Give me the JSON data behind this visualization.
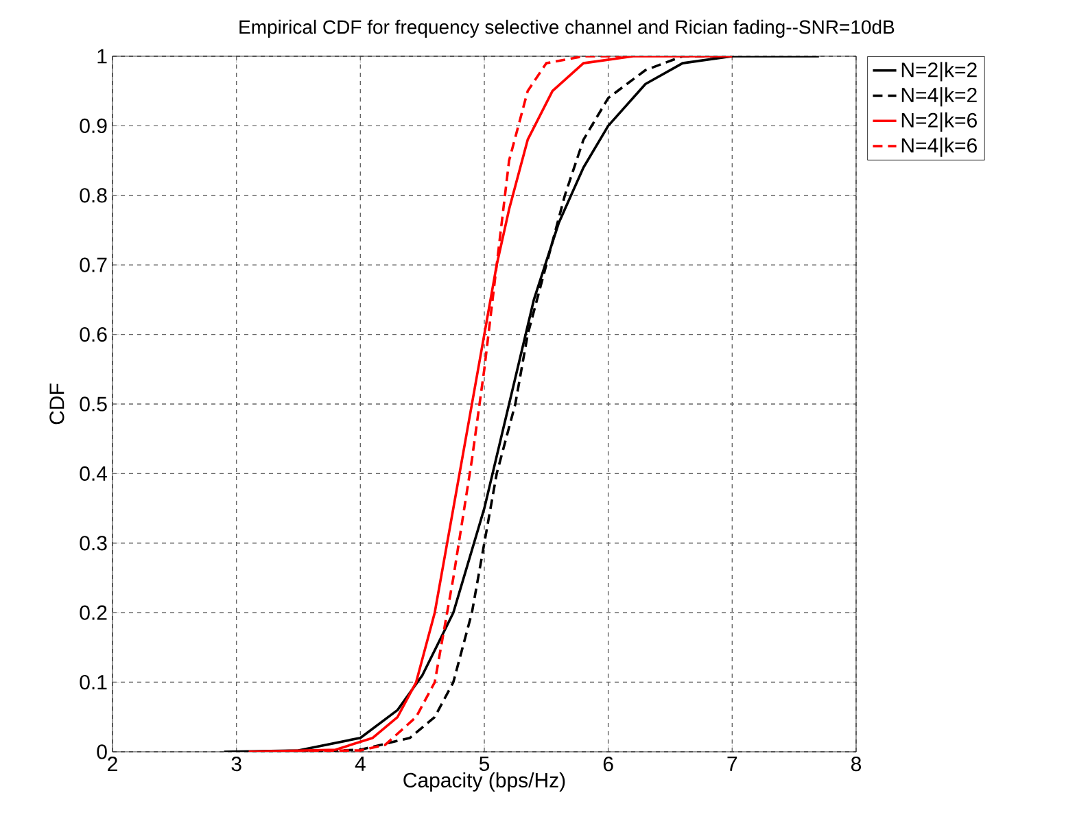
{
  "chart_data": {
    "type": "line",
    "title": "Empirical CDF for frequency selective channel and Rician fading--SNR=10dB",
    "xlabel": "Capacity (bps/Hz)",
    "ylabel": "CDF",
    "xlim": [
      2,
      8
    ],
    "ylim": [
      0,
      1
    ],
    "xticks": [
      2,
      3,
      4,
      5,
      6,
      7,
      8
    ],
    "yticks": [
      0,
      0.1,
      0.2,
      0.3,
      0.4,
      0.5,
      0.6,
      0.7,
      0.8,
      0.9,
      1
    ],
    "grid": true,
    "legend": "top right",
    "marker": "none",
    "series": [
      {
        "name": "N=2|k=2",
        "color": "#000000",
        "line_style": "solid",
        "x": [
          2.9,
          3.5,
          4.0,
          4.3,
          4.5,
          4.75,
          5.0,
          5.2,
          5.4,
          5.6,
          5.8,
          6.0,
          6.3,
          6.6,
          7.0,
          7.7
        ],
        "values": [
          0,
          0.002,
          0.02,
          0.06,
          0.11,
          0.2,
          0.35,
          0.5,
          0.65,
          0.76,
          0.84,
          0.9,
          0.96,
          0.99,
          1,
          1
        ]
      },
      {
        "name": "N=4|k=2",
        "color": "#000000",
        "line_style": "dashed",
        "x": [
          3.5,
          4.0,
          4.4,
          4.6,
          4.75,
          4.9,
          5.0,
          5.1,
          5.25,
          5.35,
          5.5,
          5.65,
          5.8,
          6.0,
          6.3,
          6.6,
          7.0
        ],
        "values": [
          0,
          0.003,
          0.02,
          0.05,
          0.1,
          0.2,
          0.3,
          0.4,
          0.5,
          0.6,
          0.7,
          0.8,
          0.88,
          0.94,
          0.98,
          1,
          1
        ]
      },
      {
        "name": "N=2|k=6",
        "color": "#ff0000",
        "line_style": "solid",
        "x": [
          3.1,
          3.8,
          4.1,
          4.3,
          4.45,
          4.6,
          4.75,
          4.9,
          5.0,
          5.1,
          5.2,
          5.35,
          5.55,
          5.8,
          6.2,
          7.0
        ],
        "values": [
          0,
          0.003,
          0.02,
          0.05,
          0.1,
          0.2,
          0.35,
          0.5,
          0.6,
          0.7,
          0.78,
          0.88,
          0.95,
          0.99,
          1,
          1
        ]
      },
      {
        "name": "N=4|k=6",
        "color": "#ff0000",
        "line_style": "dashed",
        "x": [
          3.1,
          4.0,
          4.2,
          4.45,
          4.6,
          4.75,
          4.9,
          5.0,
          5.1,
          5.2,
          5.35,
          5.5,
          5.8,
          6.1
        ],
        "values": [
          0,
          0.002,
          0.01,
          0.05,
          0.1,
          0.25,
          0.42,
          0.55,
          0.7,
          0.85,
          0.95,
          0.99,
          1,
          1
        ]
      }
    ]
  }
}
